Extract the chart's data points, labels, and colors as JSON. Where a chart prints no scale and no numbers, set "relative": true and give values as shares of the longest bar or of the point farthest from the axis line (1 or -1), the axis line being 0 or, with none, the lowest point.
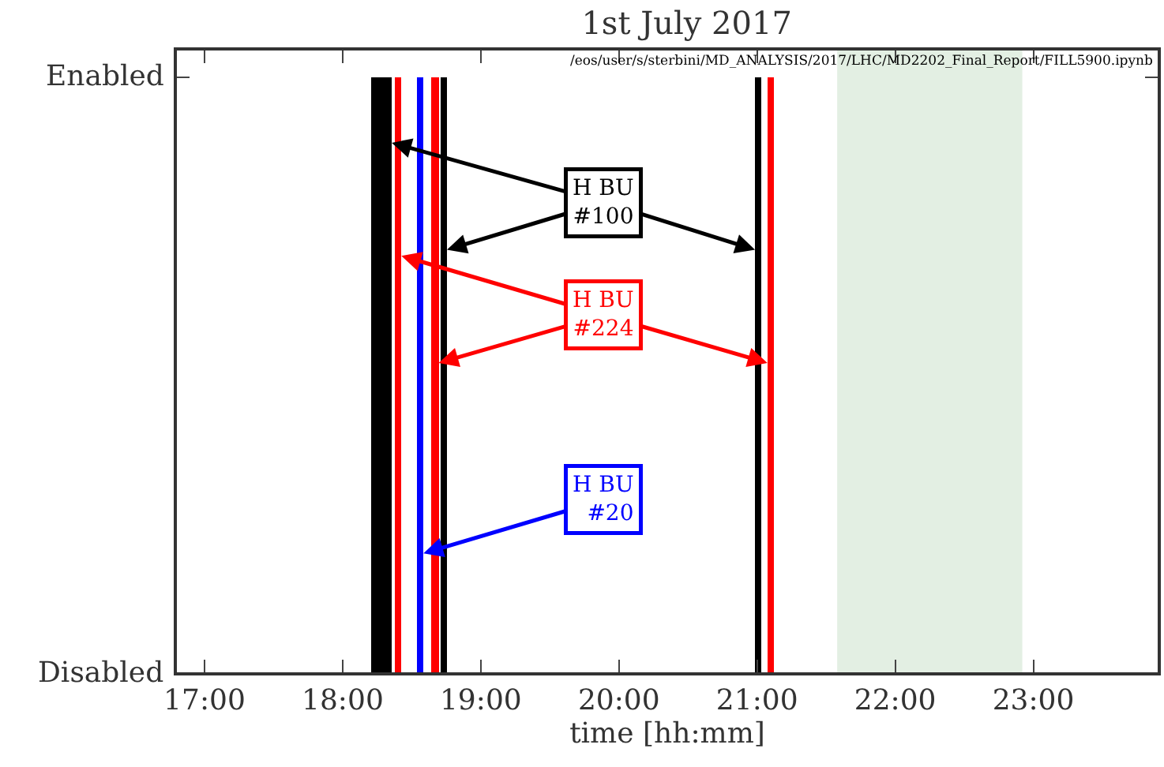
{
  "chart_data": {
    "type": "bar",
    "title": "1st July 2017",
    "xlabel": "time [hh:mm]",
    "series": [
      {
        "name": "H BU\n#100",
        "color": "#000000",
        "x": [
          18.23,
          18.28,
          18.33,
          18.73,
          21.01
        ],
        "values": [
          1,
          1,
          1,
          1,
          1
        ]
      },
      {
        "name": "H BU\n#224",
        "color": "#ff0000",
        "x": [
          18.4,
          18.67,
          21.1
        ],
        "values": [
          1,
          1,
          1
        ]
      },
      {
        "name": "H BU\n#20",
        "color": "#0000ff",
        "x": [
          18.56
        ],
        "values": [
          1
        ]
      }
    ],
    "xlim": [
      16.8,
      23.9
    ],
    "xticks": [
      {
        "value": 17,
        "label": "17:00"
      },
      {
        "value": 18,
        "label": "18:00"
      },
      {
        "value": 19,
        "label": "19:00"
      },
      {
        "value": 20,
        "label": "20:00"
      },
      {
        "value": 21,
        "label": "21:00"
      },
      {
        "value": 22,
        "label": "22:00"
      },
      {
        "value": 23,
        "label": "23:00"
      }
    ],
    "relative": true,
    "bands": [
      {
        "axis": "x",
        "from": 21.58,
        "to": 22.92,
        "color": "#e3efe3"
      }
    ],
    "annotations": [
      "/eos/user/s/sterbini/MD_ANALYSIS/2017/LHC/MD2202_Final_Report/FILL5900.ipynb",
      "Enabled",
      "Disabled"
    ],
    "grid": false,
    "legend": false
  }
}
